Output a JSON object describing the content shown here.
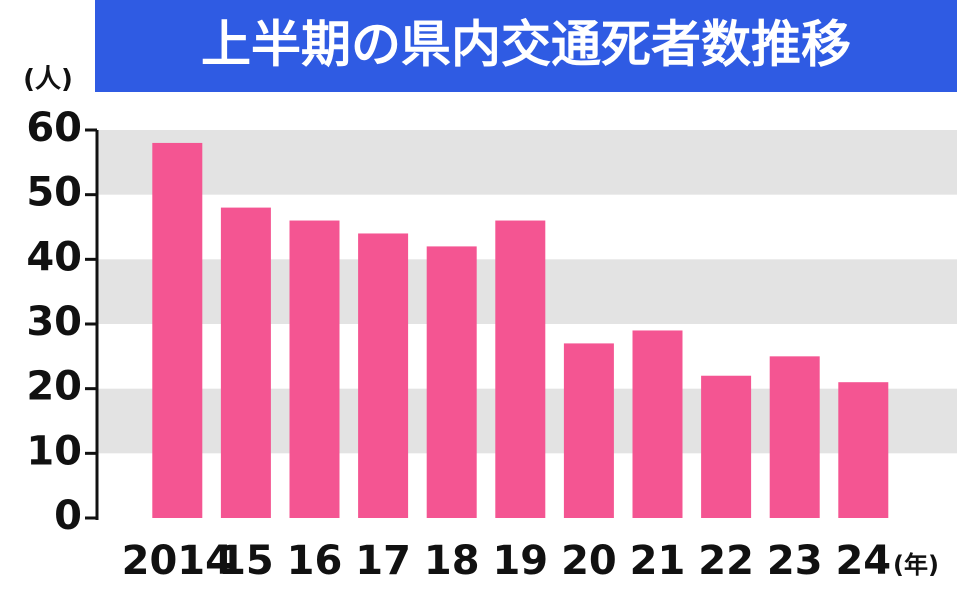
{
  "chart_data": {
    "type": "bar",
    "title": "上半期の県内交通死者数推移",
    "y_label": "(人)",
    "x_label": "(年)",
    "categories": [
      "2014",
      "15",
      "16",
      "17",
      "18",
      "19",
      "20",
      "21",
      "22",
      "23",
      "24"
    ],
    "values": [
      58,
      48,
      46,
      44,
      42,
      46,
      27,
      29,
      22,
      25,
      21
    ],
    "color": "#f45592",
    "ylim": [
      0,
      60
    ],
    "yticks": [
      0,
      10,
      20,
      30,
      40,
      50,
      60
    ],
    "grid": true
  }
}
